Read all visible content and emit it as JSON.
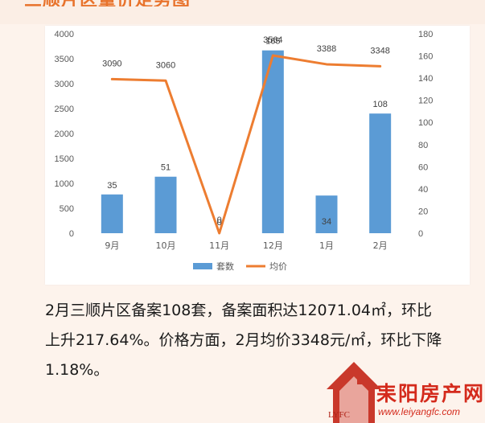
{
  "header": {
    "title": "三顺片区量价走势图"
  },
  "chart_data": {
    "type": "bar+line",
    "categories": [
      "9月",
      "10月",
      "11月",
      "12月",
      "1月",
      "2月"
    ],
    "series": [
      {
        "name": "套数",
        "type": "bar",
        "axis": "right",
        "values": [
          35,
          51,
          0,
          165,
          34,
          108
        ],
        "color": "#5b9bd5"
      },
      {
        "name": "均价",
        "type": "line",
        "axis": "left",
        "values": [
          3090,
          3060,
          0,
          3564,
          3388,
          3348
        ],
        "color": "#ed7d31"
      }
    ],
    "left_axis": {
      "min": 0,
      "max": 4000,
      "ticks": [
        "0",
        "500",
        "1000",
        "1500",
        "2000",
        "2500",
        "3000",
        "3500",
        "4000"
      ]
    },
    "right_axis": {
      "min": 0,
      "max": 180,
      "ticks": [
        "0",
        "20",
        "40",
        "60",
        "80",
        "100",
        "120",
        "140",
        "160",
        "180"
      ]
    },
    "bar_labels": [
      "35",
      "51",
      "0",
      "165",
      "34",
      "108"
    ],
    "line_labels": [
      "3090",
      "3060",
      "0",
      "3564",
      "3388",
      "3348"
    ],
    "legend": [
      "套数",
      "均价"
    ],
    "legend_position": "bottom",
    "grid": false
  },
  "summary": {
    "line1": "2月三顺片区备案108套，备案面积达12071.04㎡，环比",
    "line2": "上升217.64%。价格方面，2月均价3348元/㎡，环比下降",
    "line3": "1.18%。"
  },
  "logo": {
    "name": "耒阳房产网",
    "url": "www.leiyangfc.com",
    "mark": "LYFC"
  }
}
